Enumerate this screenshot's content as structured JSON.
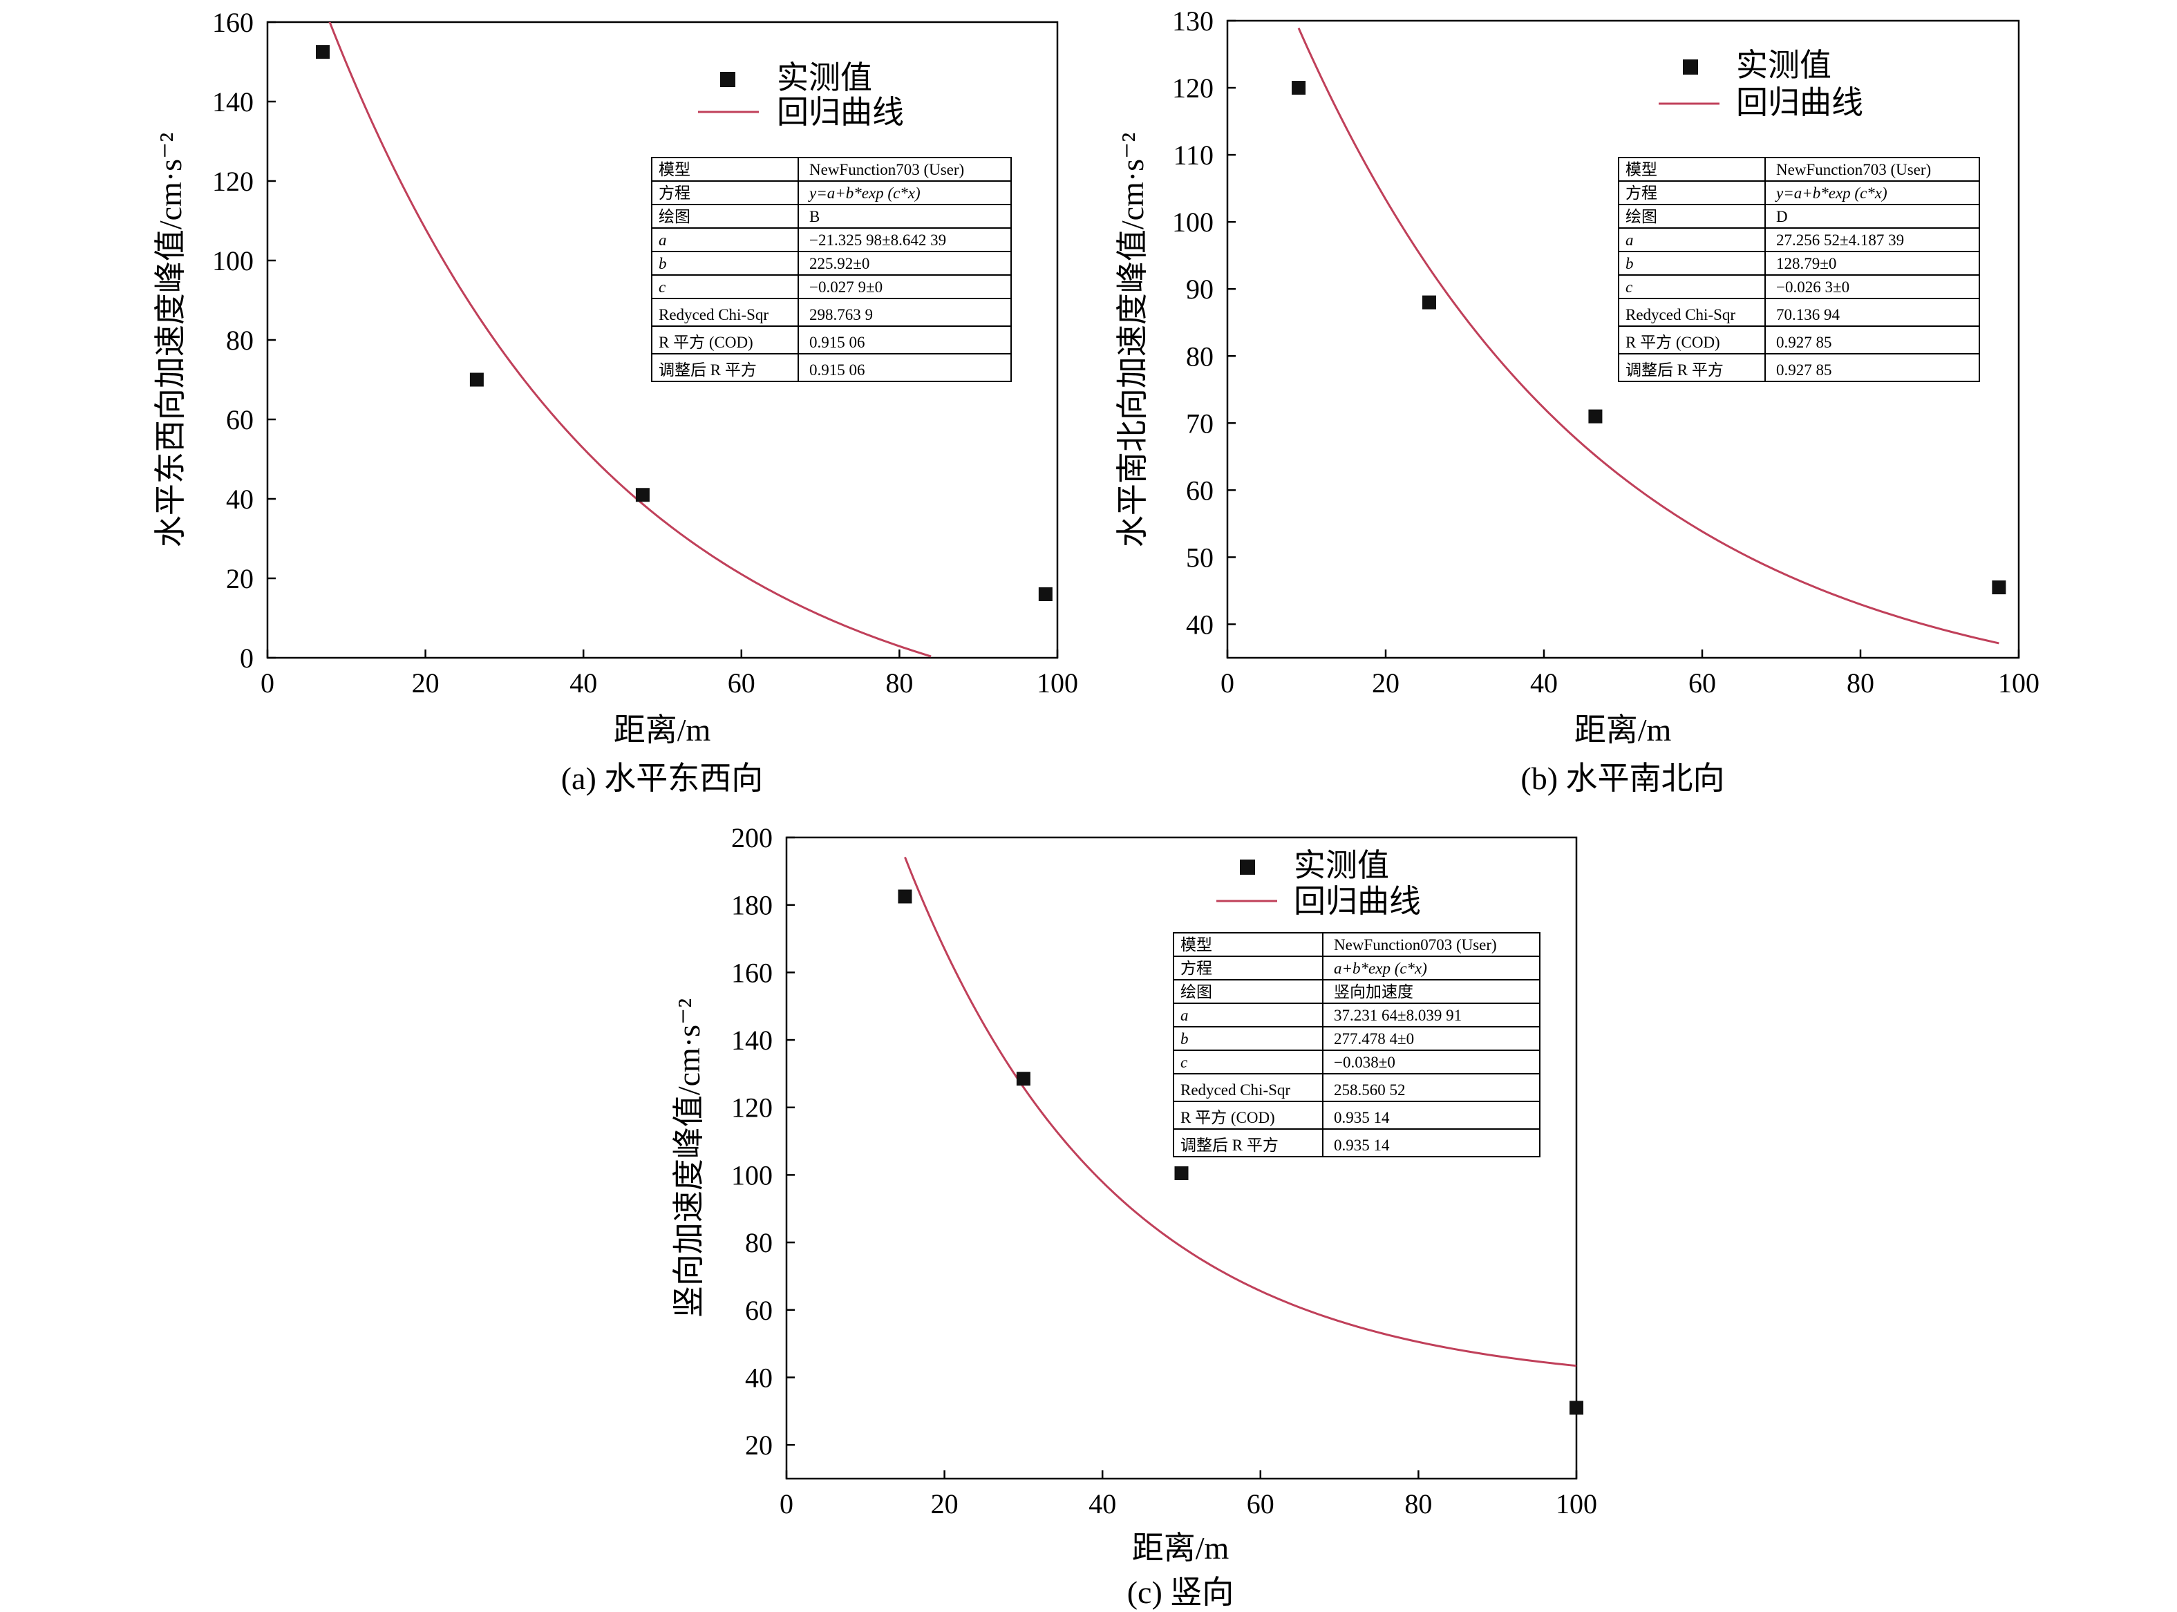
{
  "chart_data": [
    {
      "type": "scatter",
      "caption": "(a) 水平东西向",
      "xlabel": "距离/m",
      "ylabel": "水平东西向加速度峰值/cm·s⁻²",
      "xlim": [
        0,
        100
      ],
      "ylim": [
        0,
        160
      ],
      "xticks": [
        0,
        20,
        40,
        60,
        80,
        100
      ],
      "yticks": [
        0,
        20,
        40,
        60,
        80,
        100,
        120,
        140,
        160
      ],
      "legend": {
        "placement": "top-right",
        "measured": "实测值",
        "fit": "回归曲线"
      },
      "measured": {
        "x": [
          7,
          26.5,
          47.5,
          98.5
        ],
        "y": [
          152.5,
          70,
          41,
          16
        ]
      },
      "fit": {
        "a": -21.32598,
        "b": 225.92,
        "c": -0.0279,
        "x_range": [
          7,
          84
        ]
      },
      "fit_color": "#c0405a",
      "table": [
        [
          "模型",
          "NewFunction703 (User)"
        ],
        [
          "方程",
          "y=a+b*exp (c*x)"
        ],
        [
          "绘图",
          "B"
        ],
        [
          "a",
          "−21.325 98±8.642 39"
        ],
        [
          "b",
          "225.92±0"
        ],
        [
          "c",
          "−0.027 9±0"
        ],
        [
          "Redyced Chi-Sqr",
          "298.763 9"
        ],
        [
          "R 平方 (COD)",
          "0.915 06"
        ],
        [
          "调整后 R 平方",
          "0.915 06"
        ]
      ]
    },
    {
      "type": "scatter",
      "caption": "(b) 水平南北向",
      "xlabel": "距离/m",
      "ylabel": "水平南北向加速度峰值/cm·s⁻²",
      "xlim": [
        0,
        100
      ],
      "ylim": [
        35,
        130
      ],
      "xticks": [
        0,
        20,
        40,
        60,
        80,
        100
      ],
      "yticks": [
        40,
        50,
        60,
        70,
        80,
        90,
        100,
        110,
        120,
        130
      ],
      "legend": {
        "placement": "top-right",
        "measured": "实测值",
        "fit": "回归曲线"
      },
      "measured": {
        "x": [
          9,
          25.5,
          46.5,
          97.5
        ],
        "y": [
          120,
          88,
          71,
          45.5
        ]
      },
      "fit": {
        "a": 27.25652,
        "b": 128.79,
        "c": -0.0263,
        "x_range": [
          9,
          97.5
        ]
      },
      "fit_color": "#c0405a",
      "table": [
        [
          "模型",
          "NewFunction703 (User)"
        ],
        [
          "方程",
          "y=a+b*exp (c*x)"
        ],
        [
          "绘图",
          "D"
        ],
        [
          "a",
          "27.256 52±4.187 39"
        ],
        [
          "b",
          "128.79±0"
        ],
        [
          "c",
          "−0.026 3±0"
        ],
        [
          "Redyced Chi-Sqr",
          "70.136 94"
        ],
        [
          "R 平方 (COD)",
          "0.927 85"
        ],
        [
          "调整后 R 平方",
          "0.927 85"
        ]
      ]
    },
    {
      "type": "scatter",
      "caption": "(c) 竖向",
      "xlabel": "距离/m",
      "ylabel": "竖向加速度峰值/cm·s⁻²",
      "xlim": [
        0,
        100
      ],
      "ylim": [
        10,
        200
      ],
      "xticks": [
        0,
        20,
        40,
        60,
        80,
        100
      ],
      "yticks": [
        20,
        40,
        60,
        80,
        100,
        120,
        140,
        160,
        180,
        200
      ],
      "legend": {
        "placement": "top-right",
        "measured": "实测值",
        "fit": "回归曲线"
      },
      "measured": {
        "x": [
          15,
          30,
          50,
          100
        ],
        "y": [
          182.5,
          128.5,
          100.5,
          31
        ]
      },
      "fit": {
        "a": 37.23164,
        "b": 277.4784,
        "c": -0.038,
        "x_range": [
          15,
          100
        ]
      },
      "fit_color": "#c0405a",
      "table": [
        [
          "模型",
          "NewFunction0703 (User)"
        ],
        [
          "方程",
          "a+b*exp (c*x)"
        ],
        [
          "绘图",
          "竖向加速度"
        ],
        [
          "a",
          "37.231 64±8.039 91"
        ],
        [
          "b",
          "277.478 4±0"
        ],
        [
          "c",
          "−0.038±0"
        ],
        [
          "Redyced Chi-Sqr",
          "258.560 52"
        ],
        [
          "R 平方 (COD)",
          "0.935 14"
        ],
        [
          "调整后 R 平方",
          "0.935 14"
        ]
      ]
    }
  ]
}
